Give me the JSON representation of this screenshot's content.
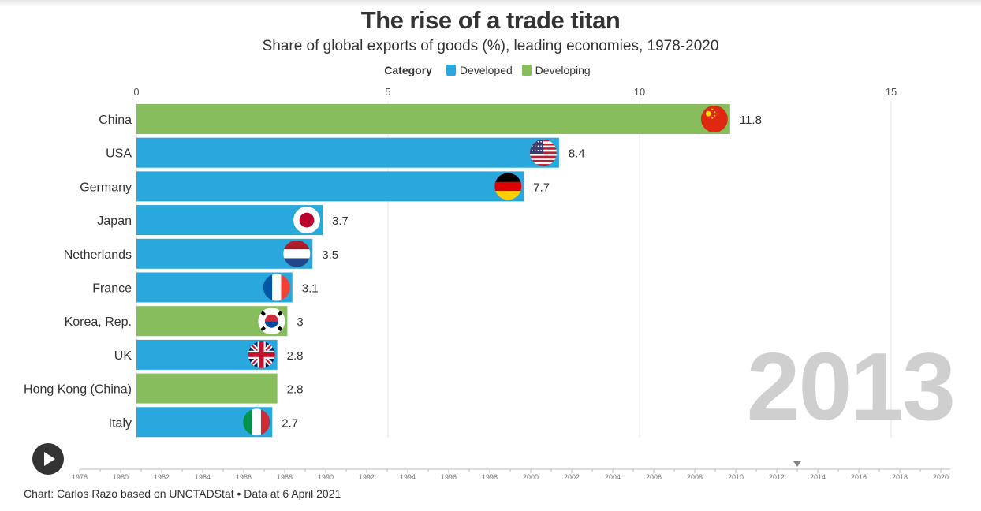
{
  "chart_data": {
    "type": "bar",
    "orientation": "horizontal",
    "title": "The rise of a trade titan",
    "subtitle": "Share of global exports of goods (%), leading economies, 1978-2020",
    "legend_title": "Category",
    "legend": [
      {
        "label": "Developed",
        "color": "#29a8de"
      },
      {
        "label": "Developing",
        "color": "#87bd5d"
      }
    ],
    "xlim": [
      0,
      15
    ],
    "x_ticks": [
      "0",
      "5",
      "10",
      "15"
    ],
    "x_tick_values": [
      0,
      5,
      10,
      15
    ],
    "year": "2013",
    "bars": [
      {
        "country": "China",
        "value": 11.8,
        "label": "11.8",
        "category": "Developing",
        "flag": "china-flag"
      },
      {
        "country": "USA",
        "value": 8.4,
        "label": "8.4",
        "category": "Developed",
        "flag": "usa-flag"
      },
      {
        "country": "Germany",
        "value": 7.7,
        "label": "7.7",
        "category": "Developed",
        "flag": "germany-flag"
      },
      {
        "country": "Japan",
        "value": 3.7,
        "label": "3.7",
        "category": "Developed",
        "flag": "japan-flag"
      },
      {
        "country": "Netherlands",
        "value": 3.5,
        "label": "3.5",
        "category": "Developed",
        "flag": "netherlands-flag"
      },
      {
        "country": "France",
        "value": 3.1,
        "label": "3.1",
        "category": "Developed",
        "flag": "france-flag"
      },
      {
        "country": "Korea, Rep.",
        "value": 3.0,
        "label": "3",
        "category": "Developing",
        "flag": "korea-flag"
      },
      {
        "country": "UK",
        "value": 2.8,
        "label": "2.8",
        "category": "Developed",
        "flag": "uk-flag"
      },
      {
        "country": "Hong Kong (China)",
        "value": 2.8,
        "label": "2.8",
        "category": "Developing",
        "flag": ""
      },
      {
        "country": "Italy",
        "value": 2.7,
        "label": "2.7",
        "category": "Developed",
        "flag": "italy-flag"
      }
    ]
  },
  "timeline": {
    "start": 1978,
    "end": 2020,
    "current": 2013,
    "labels": [
      "1978",
      "1980",
      "1982",
      "1984",
      "1986",
      "1988",
      "1990",
      "1992",
      "1994",
      "1996",
      "1998",
      "2000",
      "2002",
      "2004",
      "2006",
      "2008",
      "2010",
      "2012",
      "2014",
      "2016",
      "2018",
      "2020"
    ]
  },
  "controls": {
    "play_icon": "play-icon"
  },
  "source": "Chart: Carlos Razo based on UNCTADStat • Data at 6 April 2021",
  "colors": {
    "developed": "#29a8de",
    "developing": "#87bd5d",
    "watermark": "#cfcfcf"
  }
}
